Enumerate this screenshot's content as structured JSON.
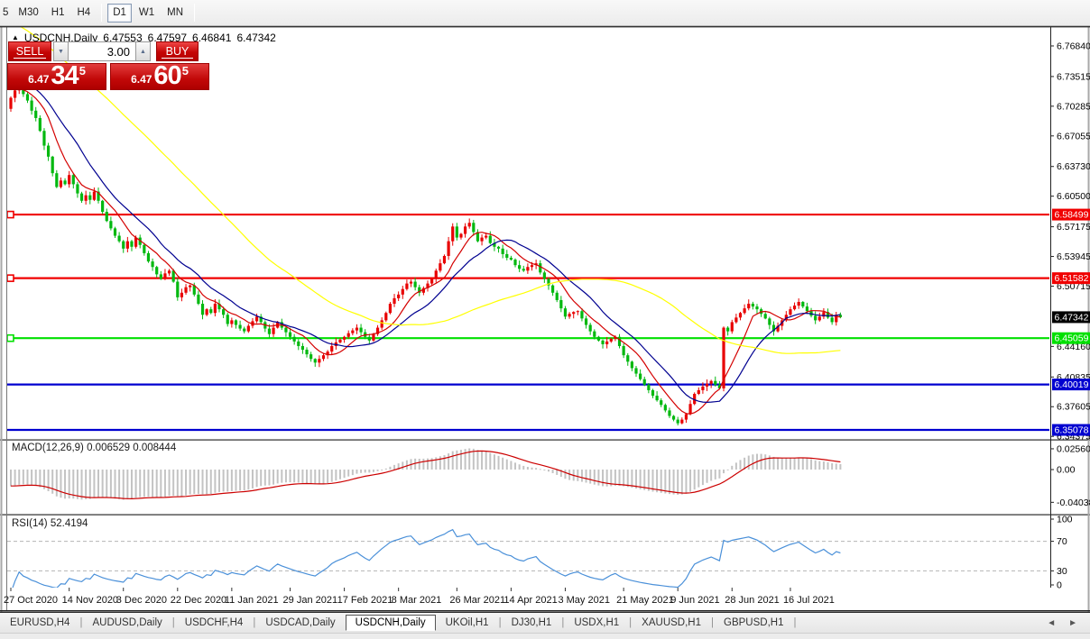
{
  "toolbar": {
    "buttons": [
      "5",
      "M30",
      "H1",
      "H4",
      "D1",
      "W1",
      "MN"
    ],
    "active_index": 4
  },
  "header": {
    "collapse_icon": "▲",
    "title": "USDCNH,Daily",
    "open": "6.47553",
    "high": "6.47597",
    "low": "6.46841",
    "close": "6.47342"
  },
  "trade_panel": {
    "sell_label": "SELL",
    "buy_label": "BUY",
    "volume": "3.00",
    "down_icon": "▼",
    "up_icon": "▲",
    "sell_price_small": "6.47",
    "sell_price_big": "34",
    "sell_price_sup": "5",
    "buy_price_small": "6.47",
    "buy_price_big": "60",
    "buy_price_sup": "5"
  },
  "indicators": {
    "macd_label": "MACD(12,26,9)",
    "macd_values": "0.006529 0.008444",
    "rsi_label": "RSI(14)",
    "rsi_values": "52.4194"
  },
  "chart_data": {
    "type": "candlestick",
    "symbol": "USDCNH",
    "timeframe": "Daily",
    "current_price": 6.47342,
    "current_price_label": "6.47342",
    "ylim": [
      6.341,
      6.787
    ],
    "grid": false,
    "closes": [
      6.712,
      6.72,
      6.728,
      6.716,
      6.709,
      6.698,
      6.69,
      6.676,
      6.66,
      6.648,
      6.63,
      6.615,
      6.622,
      6.618,
      6.628,
      6.618,
      6.608,
      6.6,
      6.606,
      6.601,
      6.61,
      6.6,
      6.588,
      6.578,
      6.57,
      6.562,
      6.556,
      6.548,
      6.556,
      6.55,
      6.56,
      6.552,
      6.543,
      6.534,
      6.528,
      6.52,
      6.515,
      6.521,
      6.524,
      6.512,
      6.495,
      6.5,
      6.506,
      6.508,
      6.498,
      6.488,
      6.476,
      6.482,
      6.478,
      6.488,
      6.482,
      6.476,
      6.466,
      6.47,
      6.465,
      6.461,
      6.458,
      6.464,
      6.469,
      6.474,
      6.468,
      6.461,
      6.455,
      6.462,
      6.468,
      6.462,
      6.457,
      6.452,
      6.447,
      6.442,
      6.438,
      6.433,
      6.428,
      6.424,
      6.428,
      6.432,
      6.436,
      6.442,
      6.446,
      6.449,
      6.452,
      6.456,
      6.459,
      6.462,
      6.457,
      6.452,
      6.448,
      6.455,
      6.462,
      6.47,
      6.478,
      6.488,
      6.494,
      6.498,
      6.504,
      6.51,
      6.512,
      6.506,
      6.5,
      6.505,
      6.51,
      6.515,
      6.524,
      6.532,
      6.54,
      6.556,
      6.572,
      6.56,
      6.564,
      6.572,
      6.576,
      6.566,
      6.556,
      6.56,
      6.562,
      6.554,
      6.55,
      6.548,
      6.542,
      6.538,
      6.536,
      6.53,
      6.526,
      6.524,
      6.528,
      6.53,
      6.532,
      6.522,
      6.515,
      6.508,
      6.5,
      6.492,
      6.483,
      6.474,
      6.477,
      6.479,
      6.48,
      6.472,
      6.465,
      6.458,
      6.452,
      6.448,
      6.444,
      6.447,
      6.45,
      6.452,
      6.442,
      6.432,
      6.425,
      6.418,
      6.412,
      6.406,
      6.4,
      6.394,
      6.388,
      6.383,
      6.378,
      6.372,
      6.366,
      6.362,
      6.358,
      6.362,
      6.368,
      6.379,
      6.39,
      6.394,
      6.398,
      6.401,
      6.404,
      6.4,
      6.396,
      6.462,
      6.458,
      6.468,
      6.473,
      6.478,
      6.483,
      6.488,
      6.485,
      6.482,
      6.477,
      6.472,
      6.465,
      6.458,
      6.464,
      6.47,
      6.476,
      6.482,
      6.486,
      6.49,
      6.485,
      6.48,
      6.475,
      6.47,
      6.474,
      6.479,
      6.473,
      6.468,
      6.476,
      6.4734
    ],
    "first_open": 6.7,
    "price_ticks": [
      "6.76840",
      "6.73515",
      "6.70285",
      "6.67055",
      "6.63730",
      "6.60500",
      "6.57175",
      "6.53945",
      "6.50715",
      "6.44160",
      "6.40835",
      "6.37605",
      "6.34375"
    ],
    "levels": [
      {
        "value": 6.58499,
        "label": "6.58499",
        "color": "#f00000",
        "tag_fg": "#ffffff",
        "handle": true
      },
      {
        "value": 6.51582,
        "label": "6.51582",
        "color": "#f00000",
        "tag_fg": "#ffffff",
        "handle": true
      },
      {
        "value": 6.45059,
        "label": "6.45059",
        "color": "#00e000",
        "tag_fg": "#ffffff",
        "handle": true
      },
      {
        "value": 6.40019,
        "label": "6.40019",
        "color": "#0000d0",
        "tag_fg": "#ffffff",
        "handle": false
      },
      {
        "value": 6.35078,
        "label": "6.35078",
        "color": "#0000d0",
        "tag_fg": "#ffffff",
        "handle": false
      }
    ],
    "moving_averages": [
      {
        "period": 8,
        "color": "#d40000"
      },
      {
        "period": 16,
        "color": "#000090"
      },
      {
        "period": 55,
        "color": "#ffff00"
      }
    ],
    "date_labels": [
      {
        "label": "27 Oct 2020",
        "bar": 0
      },
      {
        "label": "14 Nov 2020",
        "bar": 14
      },
      {
        "label": "3 Dec 2020",
        "bar": 27
      },
      {
        "label": "22 Dec 2020",
        "bar": 40
      },
      {
        "label": "11 Jan 2021",
        "bar": 53
      },
      {
        "label": "29 Jan 2021",
        "bar": 67
      },
      {
        "label": "17 Feb 2021",
        "bar": 80
      },
      {
        "label": "8 Mar 2021",
        "bar": 93
      },
      {
        "label": "26 Mar 2021",
        "bar": 107
      },
      {
        "label": "14 Apr 2021",
        "bar": 120
      },
      {
        "label": "3 May 2021",
        "bar": 133
      },
      {
        "label": "21 May 2021",
        "bar": 147
      },
      {
        "label": "9 Jun 2021",
        "bar": 160
      },
      {
        "label": "28 Jun 2021",
        "bar": 173
      },
      {
        "label": "16 Jul 2021",
        "bar": 187
      }
    ],
    "macd": {
      "fast": 12,
      "slow": 26,
      "signal": 9,
      "main_value": 0.006529,
      "signal_value": 0.008444,
      "scale_ticks": [
        {
          "label": "0.025609",
          "v": 0.025609
        },
        {
          "label": "0.00",
          "v": 0
        },
        {
          "label": "-0.04038",
          "v": -0.04038
        }
      ]
    },
    "rsi": {
      "period": 14,
      "value": 52.4194,
      "scale_ticks": [
        {
          "label": "100",
          "v": 100
        },
        {
          "label": "70",
          "v": 70
        },
        {
          "label": "30",
          "v": 30
        },
        {
          "label": "0",
          "v": 0
        }
      ],
      "dashed_levels": [
        70,
        30
      ]
    },
    "colors": {
      "up": "#e80000",
      "down": "#00b80f",
      "macd_hist": "#c3c3c3",
      "macd_signal": "#cc0000",
      "rsi_line": "#4a90d9",
      "axis_text": "#000000",
      "pane_bg": "#ffffff"
    }
  },
  "tabs": {
    "items": [
      "EURUSD,H4",
      "AUDUSD,Daily",
      "USDCHF,H4",
      "USDCAD,Daily",
      "USDCNH,Daily",
      "UKOil,H1",
      "DJ30,H1",
      "USDX,H1",
      "XAUUSD,H1",
      "GBPUSD,H1"
    ],
    "active_index": 4,
    "left_arrow": "◄",
    "right_arrow": "►"
  }
}
